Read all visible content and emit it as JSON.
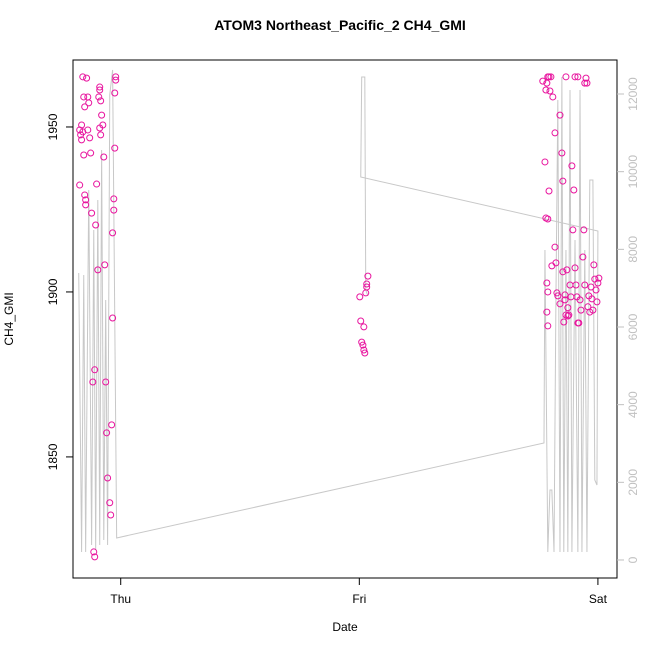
{
  "chart_data": {
    "type": "scatter",
    "title": "ATOM3 Northeast_Pacific_2 CH4_GMI",
    "xlabel": "Date",
    "ylabel": "CH4_GMI",
    "xlim": [
      -0.2,
      2.08
    ],
    "xticks": [
      {
        "value": 0,
        "label": "Thu"
      },
      {
        "value": 1,
        "label": "Fri"
      },
      {
        "value": 2,
        "label": "Sat"
      }
    ],
    "ylim": [
      1813.3,
      1970.3
    ],
    "yticks": [
      1850,
      1900,
      1950
    ],
    "y2lim": [
      -464,
      12876
    ],
    "y2ticks": [
      0,
      2000,
      4000,
      6000,
      8000,
      10000,
      12000
    ],
    "y2color": "#c0c0c0",
    "series": [
      {
        "type": "scatter",
        "color": "#e8149e",
        "x": [
          -0.172,
          -0.159,
          -0.155,
          -0.151,
          -0.168,
          -0.164,
          -0.172,
          -0.164,
          -0.159,
          -0.155,
          -0.151,
          -0.147,
          -0.147,
          -0.143,
          -0.138,
          -0.138,
          -0.134,
          -0.13,
          -0.126,
          -0.122,
          -0.117,
          -0.113,
          -0.109,
          -0.109,
          -0.105,
          -0.101,
          -0.096,
          -0.092,
          -0.088,
          -0.088,
          -0.084,
          -0.088,
          -0.084,
          -0.08,
          -0.075,
          -0.071,
          -0.067,
          -0.059,
          -0.063,
          -0.055,
          -0.046,
          -0.042,
          -0.038,
          -0.034,
          -0.034,
          -0.029,
          -0.029,
          -0.025,
          -0.021,
          -0.025,
          -0.021,
          1.002,
          1.006,
          1.01,
          1.015,
          1.019,
          1.023,
          1.019,
          1.027,
          1.031,
          1.031,
          1.036,
          1.769,
          1.782,
          1.786,
          1.79,
          1.795,
          1.799,
          1.803,
          1.811,
          1.82,
          1.841,
          1.778,
          1.782,
          1.79,
          1.795,
          1.786,
          1.79,
          1.786,
          1.79,
          1.807,
          1.82,
          1.824,
          1.828,
          1.832,
          1.841,
          1.849,
          1.853,
          1.853,
          1.857,
          1.862,
          1.866,
          1.87,
          1.874,
          1.878,
          1.883,
          1.887,
          1.891,
          1.895,
          1.899,
          1.904,
          1.908,
          1.912,
          1.916,
          1.92,
          1.925,
          1.929,
          1.937,
          1.941,
          1.945,
          1.95,
          1.954,
          1.958,
          1.962,
          1.966,
          1.971,
          1.975,
          1.979,
          1.983,
          1.987,
          1.992,
          1.996,
          2.0,
          2.004,
          1.866,
          1.904,
          1.916,
          1.945,
          1.874,
          1.862
        ],
        "values": [
          1932.4,
          1965.2,
          1959.1,
          1956.1,
          1947.6,
          1950.6,
          1949.1,
          1946.1,
          1948.5,
          1941.5,
          1929.4,
          1926.4,
          1927.9,
          1964.8,
          1959.1,
          1949.1,
          1957.3,
          1946.7,
          1942.1,
          1923.9,
          1872.7,
          1821.2,
          1819.7,
          1876.4,
          1920.3,
          1932.7,
          1906.7,
          1959.1,
          1961.2,
          1962.1,
          1957.9,
          1949.7,
          1947.6,
          1953.6,
          1950.6,
          1940.9,
          1908.2,
          1857.3,
          1872.7,
          1843.6,
          1836.1,
          1832.4,
          1859.7,
          1917.9,
          1892.1,
          1928.2,
          1924.8,
          1943.6,
          1964.2,
          1960.3,
          1965.2,
          1898.5,
          1891.2,
          1884.8,
          1883.9,
          1882.4,
          1881.5,
          1889.4,
          1899.7,
          1901.5,
          1902.4,
          1904.8,
          1963.9,
          1961.2,
          1963.3,
          1965.2,
          1965.2,
          1960.9,
          1965.2,
          1959.1,
          1948.2,
          1953.6,
          1939.4,
          1922.4,
          1922.1,
          1930.6,
          1902.7,
          1900.0,
          1893.9,
          1889.7,
          1907.9,
          1913.6,
          1908.8,
          1899.7,
          1898.8,
          1896.4,
          1942.1,
          1933.6,
          1906.1,
          1890.9,
          1897.6,
          1893.0,
          1906.7,
          1892.7,
          1893.0,
          1902.1,
          1898.5,
          1938.2,
          1918.8,
          1930.9,
          1907.3,
          1902.1,
          1898.5,
          1890.6,
          1890.6,
          1897.6,
          1894.5,
          1910.6,
          1918.8,
          1902.1,
          1964.8,
          1963.3,
          1895.5,
          1898.8,
          1893.9,
          1901.5,
          1897.9,
          1894.5,
          1908.2,
          1903.9,
          1900.6,
          1897.0,
          1902.7,
          1904.2,
          1965.2,
          1965.2,
          1965.2,
          1963.3,
          1895.2,
          1899.1
        ]
      },
      {
        "type": "line",
        "axis": "y2",
        "color": "#c8c8c8",
        "x": [
          -0.176,
          -0.164,
          -0.155,
          -0.147,
          -0.134,
          -0.122,
          -0.113,
          -0.105,
          -0.096,
          -0.088,
          -0.08,
          -0.071,
          -0.063,
          -0.055,
          -0.046,
          -0.034,
          -0.017,
          1.774,
          1.778,
          1.79,
          1.799,
          1.807,
          1.816,
          1.824,
          1.832,
          1.841,
          1.849,
          1.857,
          1.866,
          1.874,
          1.883,
          1.891,
          1.904,
          1.916,
          1.925,
          1.933,
          1.945,
          1.954,
          1.966,
          1.979,
          1.987,
          1.996,
          2.0,
          1.006,
          1.01,
          1.023,
          1.027,
          1.036
        ],
        "values": [
          7391,
          206,
          7340,
          206,
          9529,
          386,
          8499,
          258,
          9271,
          386,
          10559,
          515,
          6696,
          386,
          11975,
          12619,
          567,
          3013,
          7983,
          206,
          1803,
          1803,
          206,
          6696,
          11846,
          206,
          12439,
          206,
          7983,
          206,
          12104,
          206,
          8241,
          206,
          12104,
          206,
          7983,
          206,
          9786,
          9786,
          2060,
          1931,
          8473,
          9863,
          12439,
          12439,
          6953,
          6799
        ]
      }
    ]
  }
}
